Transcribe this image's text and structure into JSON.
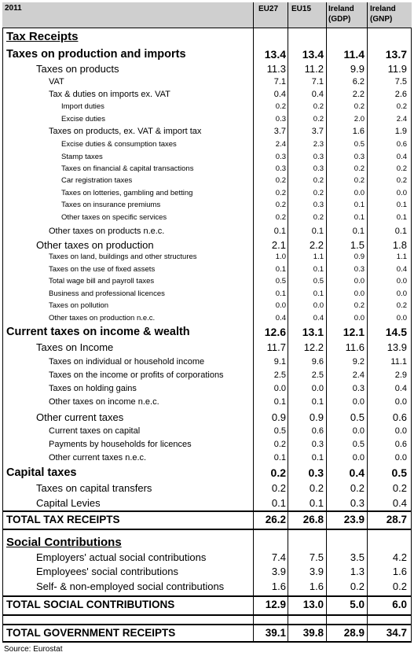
{
  "header": {
    "year": "2011",
    "columns": [
      "EU27",
      "EU15",
      "Ireland (GDP)",
      "Ireland (GNP)"
    ],
    "col_lines": [
      [
        "EU27"
      ],
      [
        "EU15"
      ],
      [
        "Ireland",
        "(GDP)"
      ],
      [
        "Ireland",
        "(GNP)"
      ]
    ]
  },
  "rows": [
    {
      "label": "Tax Receipts",
      "style": "section",
      "values": []
    },
    {
      "label": "Taxes on production and imports",
      "style": "l0",
      "values": [
        "13.4",
        "13.4",
        "11.4",
        "13.7"
      ]
    },
    {
      "label": "Taxes on products",
      "style": "l1",
      "values": [
        "11.3",
        "11.2",
        "9.9",
        "11.9"
      ]
    },
    {
      "label": "VAT",
      "style": "l2",
      "values": [
        "7.1",
        "7.1",
        "6.2",
        "7.5"
      ]
    },
    {
      "label": "Tax & duties on imports ex. VAT",
      "style": "l2",
      "values": [
        "0.4",
        "0.4",
        "2.2",
        "2.6"
      ]
    },
    {
      "label": "Import duties",
      "style": "l3",
      "values": [
        "0.2",
        "0.2",
        "0.2",
        "0.2"
      ]
    },
    {
      "label": "Excise duties",
      "style": "l3",
      "values": [
        "0.3",
        "0.2",
        "2.0",
        "2.4"
      ]
    },
    {
      "label": "Taxes on products, ex. VAT & import tax",
      "style": "l2",
      "values": [
        "3.7",
        "3.7",
        "1.6",
        "1.9"
      ]
    },
    {
      "label": "Excise duties & consumption taxes",
      "style": "l3",
      "values": [
        "2.4",
        "2.3",
        "0.5",
        "0.6"
      ]
    },
    {
      "label": "Stamp taxes",
      "style": "l3",
      "values": [
        "0.3",
        "0.3",
        "0.3",
        "0.4"
      ]
    },
    {
      "label": "Taxes on financial & capital transactions",
      "style": "l3",
      "values": [
        "0.3",
        "0.3",
        "0.2",
        "0.2"
      ]
    },
    {
      "label": "Car registration taxes",
      "style": "l3",
      "values": [
        "0.2",
        "0.2",
        "0.2",
        "0.2"
      ]
    },
    {
      "label": "Taxes on lotteries, gambling and betting",
      "style": "l3",
      "values": [
        "0.2",
        "0.2",
        "0.0",
        "0.0"
      ]
    },
    {
      "label": "Taxes on insurance premiums",
      "style": "l3",
      "values": [
        "0.2",
        "0.3",
        "0.1",
        "0.1"
      ]
    },
    {
      "label": "Other taxes on specific services",
      "style": "l3",
      "values": [
        "0.2",
        "0.2",
        "0.1",
        "0.1"
      ]
    },
    {
      "label": "Other taxes on products n.e.c.",
      "style": "l2b",
      "values": [
        "0.1",
        "0.1",
        "0.1",
        "0.1"
      ]
    },
    {
      "label": "Other taxes on production",
      "style": "l1",
      "values": [
        "2.1",
        "2.2",
        "1.5",
        "1.8"
      ]
    },
    {
      "label": "Taxes on land, buildings and other structures",
      "style": "l2s",
      "values": [
        "1.0",
        "1.1",
        "0.9",
        "1.1"
      ]
    },
    {
      "label": "Taxes on the use of fixed assets",
      "style": "l2s",
      "values": [
        "0.1",
        "0.1",
        "0.3",
        "0.4"
      ]
    },
    {
      "label": "Total wage bill and payroll taxes",
      "style": "l2s",
      "values": [
        "0.5",
        "0.5",
        "0.0",
        "0.0"
      ]
    },
    {
      "label": "Business and professional licences",
      "style": "l2s",
      "values": [
        "0.1",
        "0.1",
        "0.0",
        "0.0"
      ]
    },
    {
      "label": "Taxes on pollution",
      "style": "l2s",
      "values": [
        "0.0",
        "0.0",
        "0.2",
        "0.2"
      ]
    },
    {
      "label": "Other taxes on production n.e.c.",
      "style": "l2s",
      "values": [
        "0.4",
        "0.4",
        "0.0",
        "0.0"
      ]
    },
    {
      "label": "Current taxes on income & wealth",
      "style": "l0",
      "values": [
        "12.6",
        "13.1",
        "12.1",
        "14.5"
      ]
    },
    {
      "label": "Taxes on Income",
      "style": "l1",
      "values": [
        "11.7",
        "12.2",
        "11.6",
        "13.9"
      ]
    },
    {
      "label": "Taxes on individual or household income",
      "style": "l2c",
      "values": [
        "9.1",
        "9.6",
        "9.2",
        "11.1"
      ]
    },
    {
      "label": "Taxes on the income or profits of corporations",
      "style": "l2c",
      "values": [
        "2.5",
        "2.5",
        "2.4",
        "2.9"
      ]
    },
    {
      "label": "Taxes on holding gains",
      "style": "l2c",
      "values": [
        "0.0",
        "0.0",
        "0.3",
        "0.4"
      ]
    },
    {
      "label": "Other taxes on income n.e.c.",
      "style": "l2c",
      "values": [
        "0.1",
        "0.1",
        "0.0",
        "0.0"
      ]
    },
    {
      "label": "Other current taxes",
      "style": "l1",
      "values": [
        "0.9",
        "0.9",
        "0.5",
        "0.6"
      ]
    },
    {
      "label": "Current taxes on capital",
      "style": "l2c",
      "values": [
        "0.5",
        "0.6",
        "0.0",
        "0.0"
      ]
    },
    {
      "label": "Payments by households for licences",
      "style": "l2c",
      "values": [
        "0.2",
        "0.3",
        "0.5",
        "0.6"
      ]
    },
    {
      "label": "Other current taxes n.e.c.",
      "style": "l2c",
      "values": [
        "0.1",
        "0.1",
        "0.0",
        "0.0"
      ]
    },
    {
      "label": "Capital taxes",
      "style": "l0",
      "values": [
        "0.2",
        "0.3",
        "0.4",
        "0.5"
      ]
    },
    {
      "label": "Taxes on capital transfers",
      "style": "l1",
      "values": [
        "0.2",
        "0.2",
        "0.2",
        "0.2"
      ]
    },
    {
      "label": "Capital Levies",
      "style": "l1",
      "values": [
        "0.1",
        "0.1",
        "0.3",
        "0.4"
      ]
    },
    {
      "label": "TOTAL TAX RECEIPTS",
      "style": "total",
      "values": [
        "26.2",
        "26.8",
        "23.9",
        "28.7"
      ]
    },
    {
      "label": "Social Contributions",
      "style": "section",
      "values": []
    },
    {
      "label": "Employers' actual social contributions",
      "style": "l1c",
      "values": [
        "7.4",
        "7.5",
        "3.5",
        "4.2"
      ]
    },
    {
      "label": "Employees' social contributions",
      "style": "l1c",
      "values": [
        "3.9",
        "3.9",
        "1.3",
        "1.6"
      ]
    },
    {
      "label": "Self- & non-employed social contributions",
      "style": "l1c",
      "values": [
        "1.6",
        "1.6",
        "0.2",
        "0.2"
      ]
    },
    {
      "label": "TOTAL SOCIAL CONTRIBUTIONS",
      "style": "total",
      "values": [
        "12.9",
        "13.0",
        "5.0",
        "6.0"
      ]
    },
    {
      "label": "TOTAL GOVERNMENT RECEIPTS",
      "style": "total",
      "values": [
        "39.1",
        "39.8",
        "28.9",
        "34.7"
      ]
    }
  ],
  "source": "Source: Eurostat"
}
